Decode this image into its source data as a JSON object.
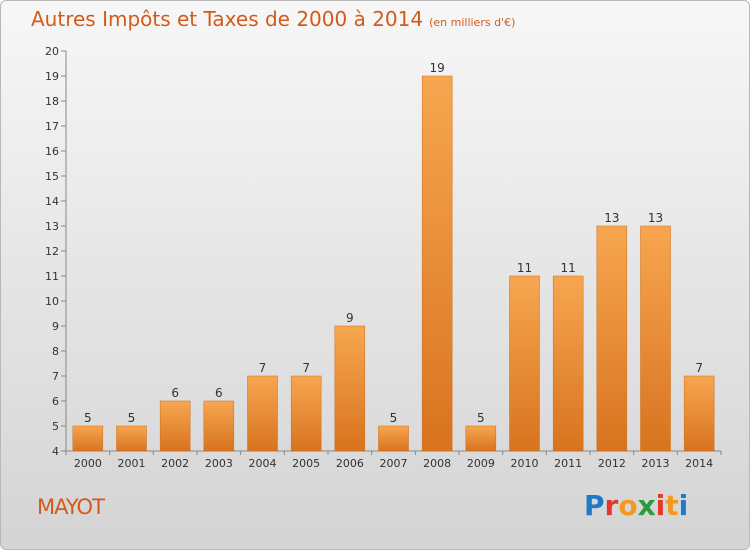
{
  "title": "Autres Impôts et Taxes de 2000 à 2014",
  "subtitle": "(en milliers d'€)",
  "place": "MAYOT",
  "logo": {
    "text": "Proxiti",
    "colors": [
      "#1e7ac8",
      "#e13a2a",
      "#f19a1f",
      "#2b9a3e",
      "#e13a2a",
      "#f19a1f",
      "#1e7ac8"
    ]
  },
  "colors": {
    "bar_light": "#f7a650",
    "bar_dark": "#d8731f",
    "accent": "#d35a1c"
  },
  "chart_data": {
    "type": "bar",
    "categories": [
      "2000",
      "2001",
      "2002",
      "2003",
      "2004",
      "2005",
      "2006",
      "2007",
      "2008",
      "2009",
      "2010",
      "2011",
      "2012",
      "2013",
      "2014"
    ],
    "values": [
      5,
      5,
      6,
      6,
      7,
      7,
      9,
      5,
      19,
      5,
      11,
      11,
      13,
      13,
      7
    ],
    "ylim": [
      4,
      20
    ],
    "yticks": [
      4,
      5,
      6,
      7,
      8,
      9,
      10,
      11,
      12,
      13,
      14,
      15,
      16,
      17,
      18,
      19,
      20
    ],
    "grid": false,
    "legend": "none"
  }
}
